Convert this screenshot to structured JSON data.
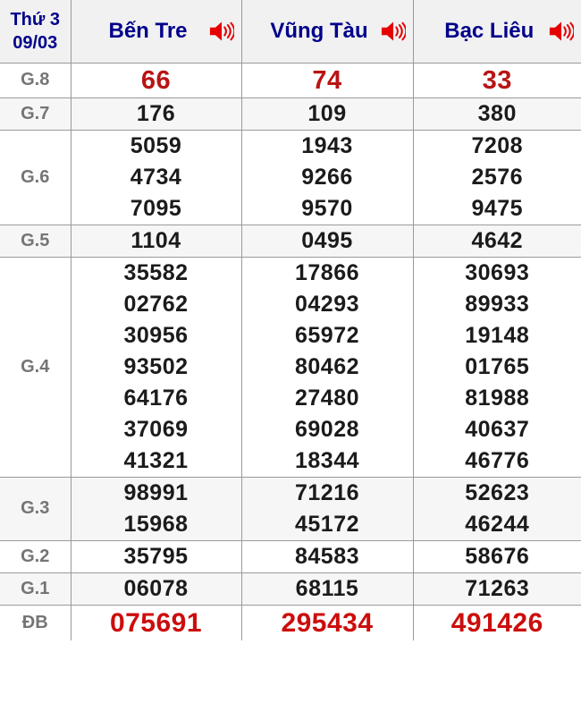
{
  "colors": {
    "header_text": "#00008b",
    "g8_red": "#b91414",
    "db_red": "#cc0d0d",
    "label_gray": "#757575",
    "number_black": "#1b1b1b",
    "border_gray": "#9a9a9a",
    "header_bg": "#f1f1f1",
    "stripe_bg": "#f6f6f6",
    "icon_red": "#e60000"
  },
  "header": {
    "date_line1": "Thứ 3",
    "date_line2": "09/03",
    "columns": [
      {
        "key": "ben-tre",
        "label": "Bến Tre",
        "icon": "speaker-icon"
      },
      {
        "key": "vung-tau",
        "label": "Vũng Tàu",
        "icon": "speaker-icon"
      },
      {
        "key": "bac-lieu",
        "label": "Bạc Liêu",
        "icon": "speaker-icon"
      }
    ]
  },
  "prizes": [
    {
      "key": "g8",
      "label": "G.8",
      "highlight": true,
      "values": [
        [
          "66"
        ],
        [
          "74"
        ],
        [
          "33"
        ]
      ]
    },
    {
      "key": "g7",
      "label": "G.7",
      "highlight": false,
      "values": [
        [
          "176"
        ],
        [
          "109"
        ],
        [
          "380"
        ]
      ]
    },
    {
      "key": "g6",
      "label": "G.6",
      "highlight": false,
      "values": [
        [
          "5059",
          "4734",
          "7095"
        ],
        [
          "1943",
          "9266",
          "9570"
        ],
        [
          "7208",
          "2576",
          "9475"
        ]
      ]
    },
    {
      "key": "g5",
      "label": "G.5",
      "highlight": false,
      "values": [
        [
          "1104"
        ],
        [
          "0495"
        ],
        [
          "4642"
        ]
      ]
    },
    {
      "key": "g4",
      "label": "G.4",
      "highlight": false,
      "values": [
        [
          "35582",
          "02762",
          "30956",
          "93502",
          "64176",
          "37069",
          "41321"
        ],
        [
          "17866",
          "04293",
          "65972",
          "80462",
          "27480",
          "69028",
          "18344"
        ],
        [
          "30693",
          "89933",
          "19148",
          "01765",
          "81988",
          "40637",
          "46776"
        ]
      ]
    },
    {
      "key": "g3",
      "label": "G.3",
      "highlight": false,
      "values": [
        [
          "98991",
          "15968"
        ],
        [
          "71216",
          "45172"
        ],
        [
          "52623",
          "46244"
        ]
      ]
    },
    {
      "key": "g2",
      "label": "G.2",
      "highlight": false,
      "values": [
        [
          "35795"
        ],
        [
          "84583"
        ],
        [
          "58676"
        ]
      ]
    },
    {
      "key": "g1",
      "label": "G.1",
      "highlight": false,
      "values": [
        [
          "06078"
        ],
        [
          "68115"
        ],
        [
          "71263"
        ]
      ]
    },
    {
      "key": "db",
      "label": "ĐB",
      "highlight": true,
      "values": [
        [
          "075691"
        ],
        [
          "295434"
        ],
        [
          "491426"
        ]
      ]
    }
  ]
}
